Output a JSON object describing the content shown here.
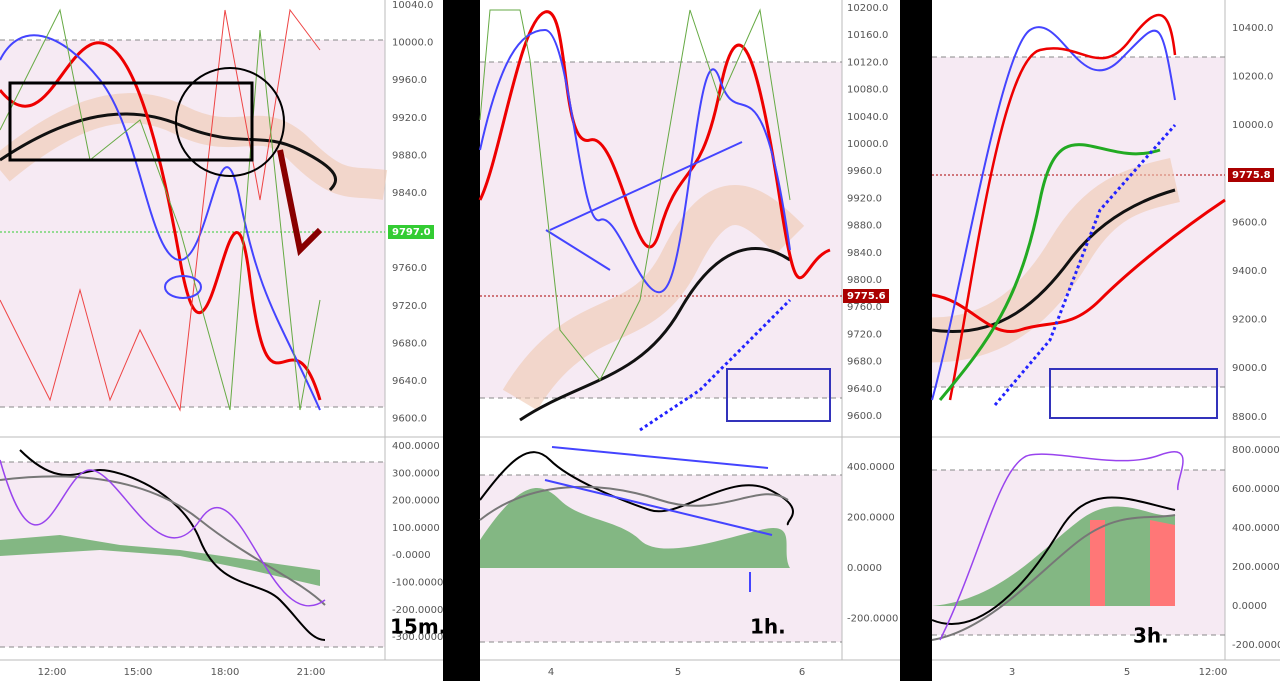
{
  "panels": [
    {
      "price_ticks": [
        {
          "value": 10040,
          "label": "10040.0"
        },
        {
          "value": 10000,
          "label": "10000.0"
        },
        {
          "value": 9960,
          "label": "9960.0"
        },
        {
          "value": 9920,
          "label": "9920.0"
        },
        {
          "value": 9880,
          "label": "9880.0"
        },
        {
          "value": 9840,
          "label": "9840.0"
        },
        {
          "value": 9760,
          "label": "9760.0"
        },
        {
          "value": 9720,
          "label": "9720.0"
        },
        {
          "value": 9680,
          "label": "9680.0"
        },
        {
          "value": 9640,
          "label": "9640.0"
        },
        {
          "value": 9600,
          "label": "9600.0"
        }
      ],
      "osc_ticks": [
        {
          "value": 400,
          "label": "400.0000"
        },
        {
          "value": 300,
          "label": "300.0000"
        },
        {
          "value": 200,
          "label": "200.0000"
        },
        {
          "value": 100,
          "label": "100.0000"
        },
        {
          "value": 0,
          "label": "-0.0000"
        },
        {
          "value": -100,
          "label": "-100.0000"
        },
        {
          "value": -200,
          "label": "-200.0000"
        },
        {
          "value": -300,
          "label": "-300.0000"
        }
      ],
      "x_labels": [
        "12:00",
        "15:00",
        "18:00",
        "21:00"
      ],
      "price_badge": "9797.0",
      "timeframe": "15m."
    },
    {
      "price_ticks": [
        {
          "value": 10200,
          "label": "10200.0"
        },
        {
          "value": 10160,
          "label": "10160.0"
        },
        {
          "value": 10120,
          "label": "10120.0"
        },
        {
          "value": 10080,
          "label": "10080.0"
        },
        {
          "value": 10040,
          "label": "10040.0"
        },
        {
          "value": 10000,
          "label": "10000.0"
        },
        {
          "value": 9960,
          "label": "9960.0"
        },
        {
          "value": 9920,
          "label": "9920.0"
        },
        {
          "value": 9880,
          "label": "9880.0"
        },
        {
          "value": 9840,
          "label": "9840.0"
        },
        {
          "value": 9800,
          "label": "9800.0"
        },
        {
          "value": 9760,
          "label": "9760.0"
        },
        {
          "value": 9720,
          "label": "9720.0"
        },
        {
          "value": 9680,
          "label": "9680.0"
        },
        {
          "value": 9640,
          "label": "9640.0"
        },
        {
          "value": 9600,
          "label": "9600.0"
        }
      ],
      "osc_ticks": [
        {
          "value": 400,
          "label": "400.0000"
        },
        {
          "value": 200,
          "label": "200.0000"
        },
        {
          "value": 0,
          "label": "0.0000"
        },
        {
          "value": -200,
          "label": "-200.0000"
        }
      ],
      "x_labels": [
        "4",
        "5",
        "6"
      ],
      "price_badge": "9775.6",
      "timeframe": "1h."
    },
    {
      "price_ticks": [
        {
          "value": 10400,
          "label": "10400.0"
        },
        {
          "value": 10200,
          "label": "10200.0"
        },
        {
          "value": 10000,
          "label": "10000.0"
        },
        {
          "value": 9600,
          "label": "9600.0"
        },
        {
          "value": 9400,
          "label": "9400.0"
        },
        {
          "value": 9200,
          "label": "9200.0"
        },
        {
          "value": 9000,
          "label": "9000.0"
        },
        {
          "value": 8800,
          "label": "8800.0"
        }
      ],
      "osc_ticks": [
        {
          "value": 800,
          "label": "800.0000"
        },
        {
          "value": 600,
          "label": "600.0000"
        },
        {
          "value": 400,
          "label": "400.0000"
        },
        {
          "value": 200,
          "label": "200.0000"
        },
        {
          "value": 0,
          "label": "0.0000"
        },
        {
          "value": -200,
          "label": "-200.0000"
        }
      ],
      "x_labels": [
        "3",
        "5",
        "12:00"
      ],
      "price_badge": "9775.8",
      "timeframe": "3h."
    }
  ]
}
